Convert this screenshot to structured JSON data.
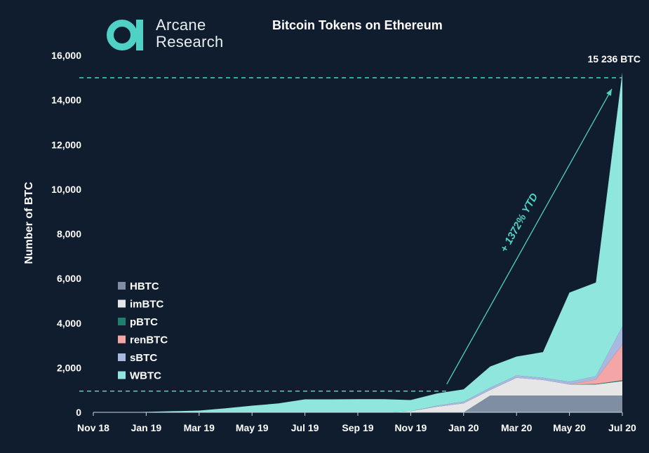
{
  "brand": {
    "line1": "Arcane",
    "line2": "Research",
    "accent": "#4fd1c5"
  },
  "chart_data": {
    "type": "area",
    "stacked": true,
    "title": "Bitcoin Tokens on Ethereum",
    "xlabel": "",
    "ylabel": "Number of BTC",
    "ylim": [
      0,
      16000
    ],
    "yticks": [
      0,
      2000,
      4000,
      6000,
      8000,
      10000,
      12000,
      14000,
      16000
    ],
    "ytick_labels": [
      "0",
      "2,000",
      "4,000",
      "6,000",
      "8,000",
      "10,000",
      "12,000",
      "14,000",
      "16,000"
    ],
    "xtick_labels": [
      "Nov 18",
      "Jan 19",
      "Mar 19",
      "May 19",
      "Jul 19",
      "Sep 19",
      "Nov 19",
      "Jan 20",
      "Mar 20",
      "May 20",
      "Jul 20"
    ],
    "x_months": [
      "2018-11",
      "2019-01",
      "2019-03",
      "2019-05",
      "2019-07",
      "2019-09",
      "2019-11",
      "2020-01",
      "2020-03",
      "2020-05",
      "2020-07"
    ],
    "grid": false,
    "legend_position": "lower-left",
    "x": [
      "2018-11",
      "2018-12",
      "2019-01",
      "2019-02",
      "2019-03",
      "2019-04",
      "2019-05",
      "2019-06",
      "2019-07",
      "2019-08",
      "2019-09",
      "2019-10",
      "2019-11",
      "2019-12",
      "2020-01",
      "2020-02",
      "2020-03",
      "2020-04",
      "2020-05",
      "2020-06",
      "2020-07"
    ],
    "series": [
      {
        "name": "HBTC",
        "color": "#7f8ea3",
        "values": [
          0,
          0,
          0,
          0,
          0,
          0,
          0,
          0,
          0,
          0,
          0,
          0,
          0,
          0,
          0,
          750,
          750,
          750,
          750,
          750,
          750
        ]
      },
      {
        "name": "imBTC",
        "color": "#e6e6e6",
        "values": [
          0,
          0,
          0,
          0,
          0,
          0,
          0,
          0,
          0,
          0,
          0,
          0,
          50,
          250,
          400,
          250,
          800,
          700,
          500,
          500,
          650
        ]
      },
      {
        "name": "pBTC",
        "color": "#1e7f6e",
        "values": [
          0,
          0,
          0,
          0,
          0,
          0,
          0,
          0,
          0,
          0,
          0,
          0,
          0,
          0,
          0,
          0,
          0,
          0,
          0,
          20,
          40
        ]
      },
      {
        "name": "renBTC",
        "color": "#f4a6a6",
        "values": [
          0,
          0,
          0,
          0,
          0,
          0,
          0,
          0,
          0,
          0,
          0,
          0,
          0,
          0,
          0,
          0,
          0,
          0,
          0,
          200,
          1600
        ]
      },
      {
        "name": "sBTC",
        "color": "#a9b8e0",
        "values": [
          0,
          0,
          0,
          0,
          0,
          0,
          0,
          0,
          0,
          0,
          0,
          0,
          0,
          50,
          80,
          100,
          100,
          100,
          120,
          150,
          800
        ]
      },
      {
        "name": "WBTC",
        "color": "#8ee6dc",
        "values": [
          0,
          0,
          20,
          50,
          80,
          180,
          300,
          400,
          580,
          580,
          590,
          590,
          500,
          550,
          550,
          950,
          850,
          1150,
          4000,
          4200,
          11400
        ]
      }
    ],
    "annotations": {
      "end_value_label": "15 236 BTC",
      "growth_label": "+ 1372% YTD",
      "start_reference_value": 950,
      "end_reference_value": 15000
    },
    "colors": {
      "background": "#0f1d2f",
      "reference_line": "#4fd1c5",
      "axis": "#cfd8e0"
    }
  }
}
